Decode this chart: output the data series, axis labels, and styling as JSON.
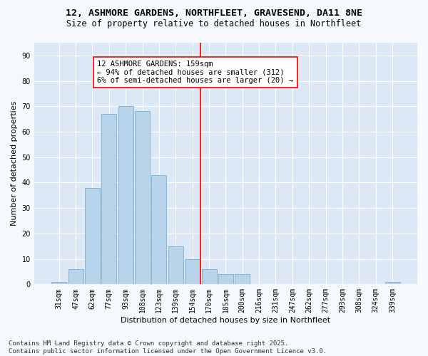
{
  "title_line1": "12, ASHMORE GARDENS, NORTHFLEET, GRAVESEND, DA11 8NE",
  "title_line2": "Size of property relative to detached houses in Northfleet",
  "xlabel": "Distribution of detached houses by size in Northfleet",
  "ylabel": "Number of detached properties",
  "categories": [
    "31sqm",
    "47sqm",
    "62sqm",
    "77sqm",
    "93sqm",
    "108sqm",
    "123sqm",
    "139sqm",
    "154sqm",
    "170sqm",
    "185sqm",
    "200sqm",
    "216sqm",
    "231sqm",
    "247sqm",
    "262sqm",
    "277sqm",
    "293sqm",
    "308sqm",
    "324sqm",
    "339sqm"
  ],
  "values": [
    1,
    6,
    38,
    67,
    70,
    68,
    43,
    15,
    10,
    6,
    4,
    4,
    0,
    0,
    0,
    0,
    0,
    0,
    0,
    0,
    1
  ],
  "bar_color": "#b8d4ea",
  "bar_edge_color": "#7aadd4",
  "vline_color": "red",
  "vline_index": 8.5,
  "annotation_text": "12 ASHMORE GARDENS: 159sqm\n← 94% of detached houses are smaller (312)\n6% of semi-detached houses are larger (20) →",
  "annotation_box_color": "white",
  "annotation_box_edge": "red",
  "ylim": [
    0,
    95
  ],
  "yticks": [
    0,
    10,
    20,
    30,
    40,
    50,
    60,
    70,
    80,
    90
  ],
  "plot_bg_color": "#dce8f5",
  "fig_bg_color": "#f5f8fd",
  "grid_color": "white",
  "footer_text": "Contains HM Land Registry data © Crown copyright and database right 2025.\nContains public sector information licensed under the Open Government Licence v3.0.",
  "title_fontsize": 9.5,
  "subtitle_fontsize": 8.5,
  "axis_label_fontsize": 8,
  "tick_fontsize": 7,
  "annotation_fontsize": 7.5,
  "footer_fontsize": 6.5
}
